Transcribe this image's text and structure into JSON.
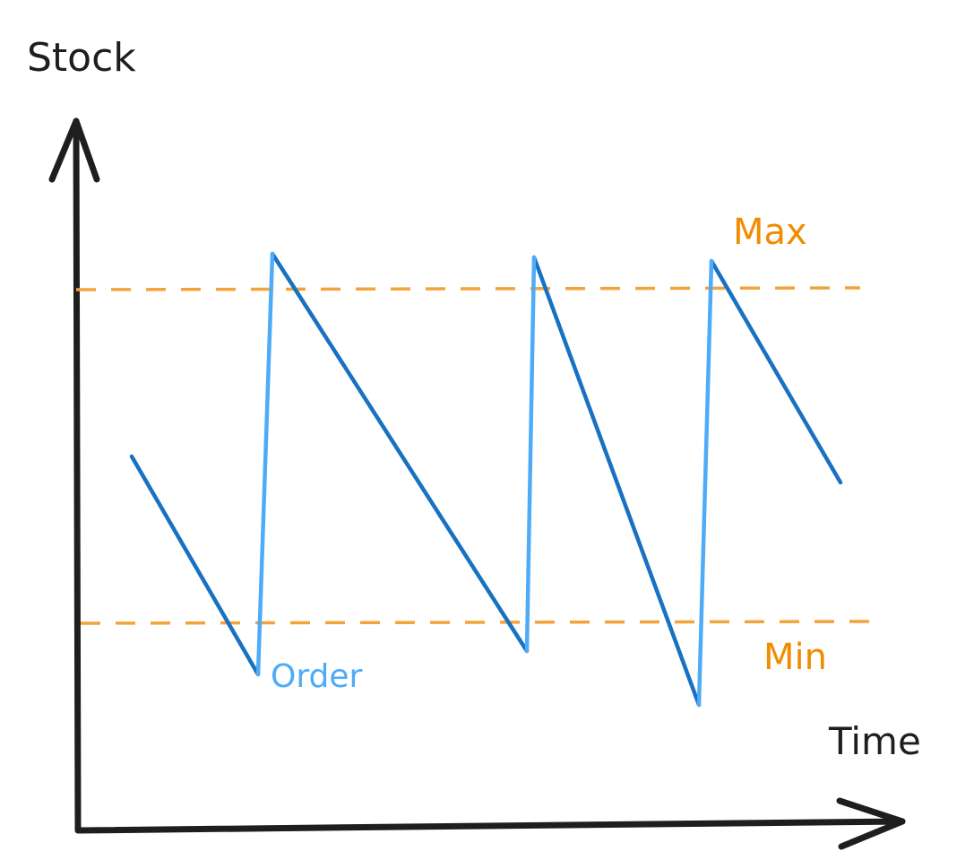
{
  "labels": {
    "y_axis": "Stock",
    "x_axis": "Time",
    "max": "Max",
    "min": "Min",
    "order": "Order"
  },
  "colors": {
    "axis": "#1e1e1e",
    "threshold": "#f4a33a",
    "threshold_text": "#f08c00",
    "depletion": "#1971c2",
    "replenish": "#4dabf7"
  }
}
